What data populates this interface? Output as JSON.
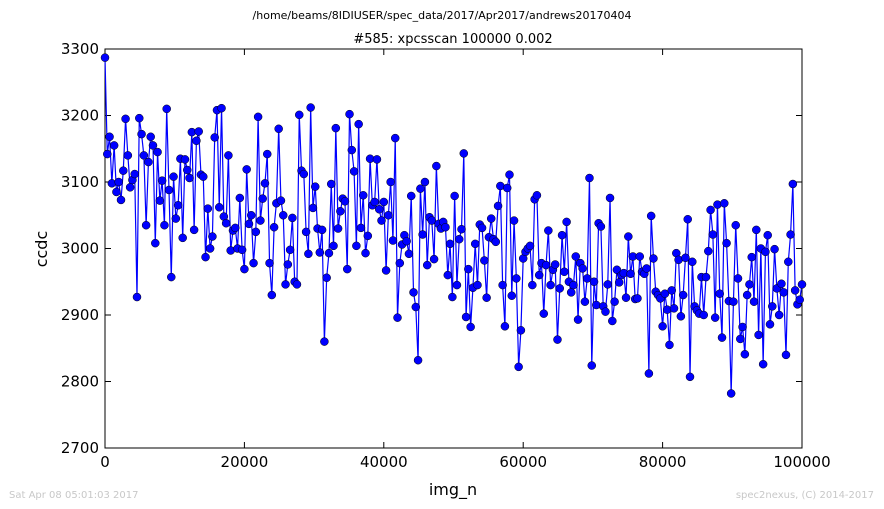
{
  "header": {
    "file_path": "/home/beams/8IDIUSER/spec_data/2017/Apr2017/andrews20170404"
  },
  "footer": {
    "timestamp": "Sat Apr 08 05:01:03 2017",
    "credit": "spec2nexus, (C) 2014-2017"
  },
  "colors": {
    "series": "#0000ff",
    "axis": "#000000",
    "background": "#ffffff",
    "footer_text": "#c8c8c8"
  },
  "chart_data": {
    "type": "line",
    "title": "#585: xpcsscan 100000 0.002",
    "xlabel": "img_n",
    "ylabel": "ccdc",
    "xlim": [
      0,
      100000
    ],
    "ylim": [
      2700,
      3300
    ],
    "xticks": [
      0,
      20000,
      40000,
      60000,
      80000,
      100000
    ],
    "yticks": [
      2700,
      2800,
      2900,
      3000,
      3100,
      3200,
      3300
    ],
    "xtick_labels": [
      "0",
      "20000",
      "40000",
      "60000",
      "80000",
      "100000"
    ],
    "ytick_labels": [
      "2700",
      "2800",
      "2900",
      "3000",
      "3100",
      "3200",
      "3300"
    ],
    "grid": false,
    "legend": "none",
    "marker": "circle",
    "series": [
      {
        "values": [
          3287,
          3142,
          3168,
          3098,
          3155,
          3085,
          3100,
          3073,
          3117,
          3195,
          3140,
          3092,
          3103,
          3112,
          2927,
          3196,
          3172,
          3140,
          3035,
          3130,
          3168,
          3155,
          3008,
          3145,
          3072,
          3102,
          3035,
          3210,
          3088,
          2957,
          3108,
          3045,
          3065,
          3135,
          3016,
          3134,
          3118,
          3106,
          3175,
          3028,
          3162,
          3176,
          3111,
          3108,
          2987,
          3060,
          3000,
          3018,
          3167,
          3208,
          3062,
          3211,
          3048,
          3038,
          3140,
          2997,
          3027,
          3031,
          3000,
          3076,
          2998,
          2969,
          3119,
          3037,
          3050,
          2978,
          3025,
          3198,
          3042,
          3075,
          3098,
          3142,
          2978,
          2930,
          3032,
          3068,
          3180,
          3072,
          3050,
          2946,
          2976,
          2998,
          3046,
          2950,
          2946,
          3201,
          3117,
          3112,
          3025,
          2992,
          3212,
          3061,
          3093,
          3030,
          2994,
          3028,
          2860,
          2956,
          2993,
          3097,
          3004,
          3181,
          3030,
          3056,
          3075,
          3071,
          2969,
          3202,
          3148,
          3116,
          3004,
          3187,
          3031,
          3080,
          2993,
          3019,
          3135,
          3065,
          3070,
          3134,
          3059,
          3042,
          3070,
          2967,
          3050,
          3100,
          3012,
          3166,
          2896,
          2978,
          3006,
          3020,
          3011,
          2992,
          3079,
          2934,
          2912,
          2832,
          3090,
          3021,
          3100,
          2975,
          3047,
          3042,
          2984,
          3124,
          3037,
          3030,
          3040,
          3032,
          2960,
          3007,
          2927,
          3079,
          2945,
          3014,
          3029,
          3143,
          2897,
          2969,
          2882,
          2941,
          3007,
          2945,
          3036,
          3031,
          2982,
          2926,
          3017,
          3045,
          3014,
          3010,
          3064,
          3094,
          2945,
          2883,
          3091,
          3111,
          2929,
          3042,
          2955,
          2822,
          2877,
          2985,
          2995,
          3000,
          3004,
          2945,
          3074,
          3080,
          2960,
          2978,
          2902,
          2975,
          3027,
          2945,
          2968,
          2976,
          2863,
          2940,
          3020,
          2965,
          3040,
          2950,
          2934,
          2945,
          2988,
          2893,
          2978,
          2970,
          2920,
          2955,
          3106,
          2824,
          2950,
          2915,
          3038,
          3033,
          2913,
          2905,
          2946,
          3076,
          2891,
          2920,
          2968,
          2949,
          2960,
          2963,
          2926,
          3018,
          2962,
          2988,
          2924,
          2925,
          2988,
          2965,
          2962,
          2970,
          2812,
          3049,
          2985,
          2935,
          2930,
          2925,
          2883,
          2932,
          2908,
          2855,
          2937,
          2910,
          2993,
          2983,
          2898,
          2930,
          2986,
          3044,
          2807,
          2980,
          2913,
          2907,
          2902,
          2957,
          2900,
          2957,
          2996,
          3058,
          3021,
          2896,
          3066,
          2932,
          2866,
          3068,
          3008,
          2921,
          2782,
          2920,
          3035,
          2955,
          2864,
          2882,
          2841,
          2930,
          2946,
          2987,
          2920,
          3028,
          2870,
          3000,
          2826,
          2995,
          3020,
          2886,
          2913,
          2999,
          2940,
          2900,
          2947,
          2934,
          2840,
          2980,
          3021,
          3097,
          2937,
          2916,
          2923,
          2946
        ]
      }
    ]
  }
}
